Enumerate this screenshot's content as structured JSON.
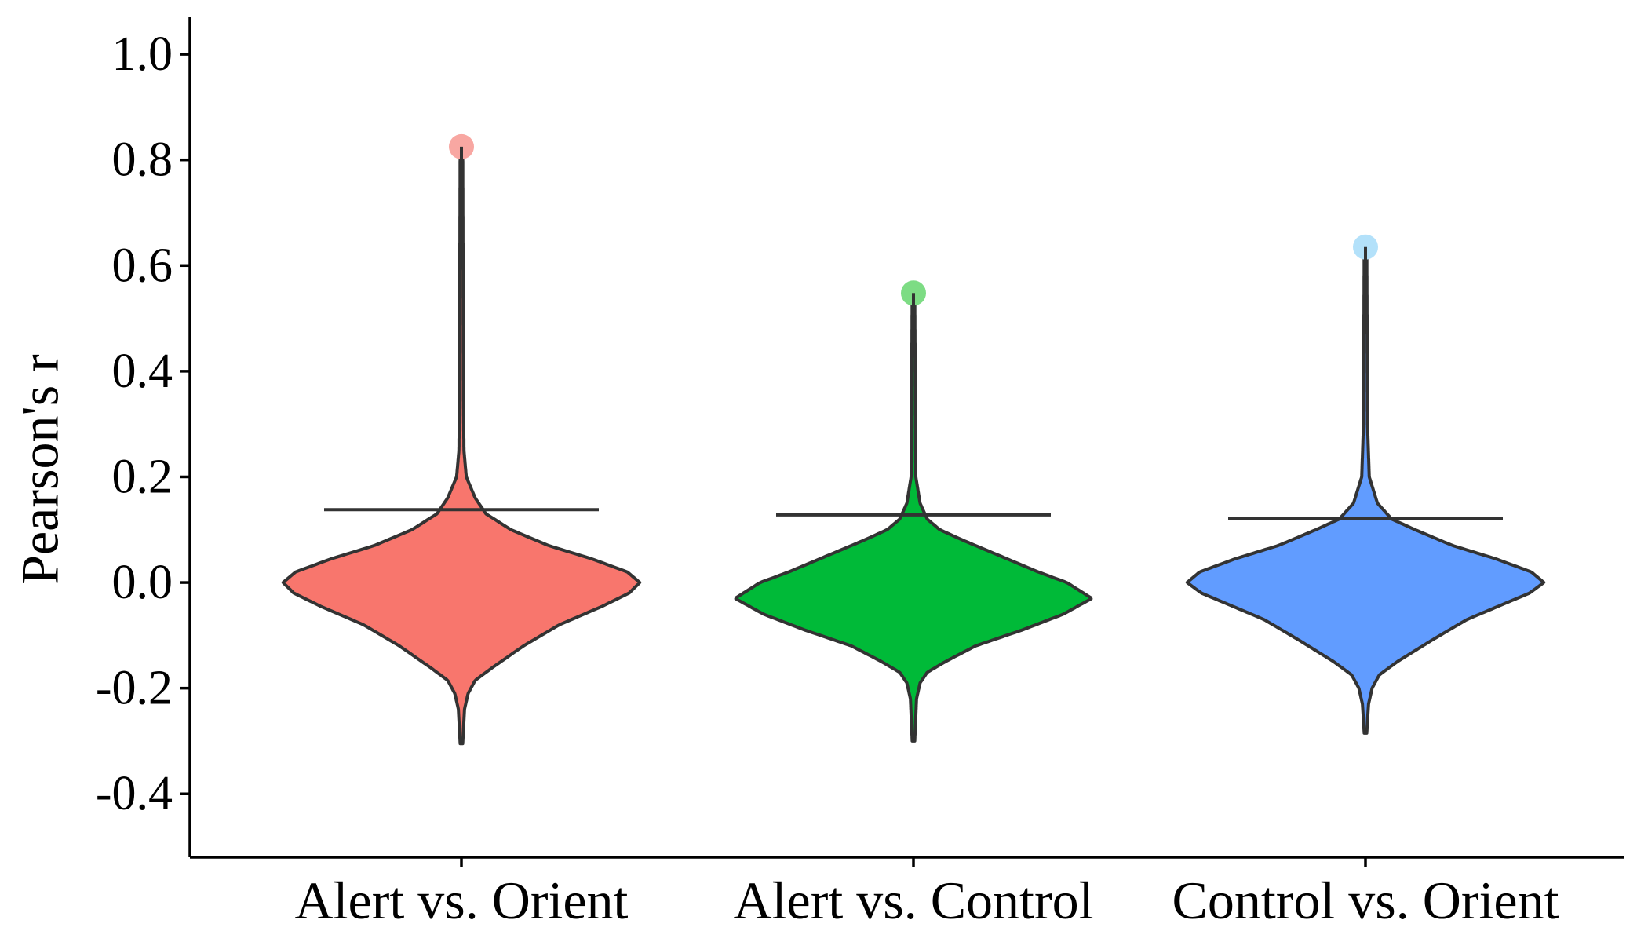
{
  "chart_data": {
    "type": "violin",
    "ylabel": "Pearson's r",
    "xlabel": "",
    "ylim": [
      -0.52,
      1.07
    ],
    "yticks": [
      1.0,
      0.8,
      0.6,
      0.4,
      0.2,
      0.0,
      -0.2,
      -0.4
    ],
    "ytick_labels": [
      "1.0",
      "0.8",
      "0.6",
      "0.4",
      "0.2",
      "0.0",
      "-0.2",
      "-0.4"
    ],
    "grid": false,
    "legend": "none",
    "categories": [
      "Alert vs. Orient",
      "Alert vs. Control",
      "Control vs. Orient"
    ],
    "series": [
      {
        "category": "Alert vs. Orient",
        "color": "#F8766D",
        "outlier_color": "#F8A7A2",
        "min": -0.305,
        "max": 0.825,
        "mode": 0.0,
        "reference_line": 0.138,
        "max_point": 0.825,
        "density_profile": [
          [
            -0.305,
            0.0
          ],
          [
            -0.24,
            0.01
          ],
          [
            -0.21,
            0.03
          ],
          [
            -0.185,
            0.07
          ],
          [
            -0.16,
            0.17
          ],
          [
            -0.12,
            0.34
          ],
          [
            -0.08,
            0.54
          ],
          [
            -0.045,
            0.78
          ],
          [
            -0.02,
            0.93
          ],
          [
            0.0,
            0.99
          ],
          [
            0.02,
            0.92
          ],
          [
            0.045,
            0.72
          ],
          [
            0.07,
            0.48
          ],
          [
            0.1,
            0.27
          ],
          [
            0.13,
            0.13
          ],
          [
            0.16,
            0.07
          ],
          [
            0.2,
            0.02
          ],
          [
            0.25,
            0.007
          ],
          [
            0.35,
            0.004
          ],
          [
            0.825,
            0.0
          ]
        ]
      },
      {
        "category": "Alert vs. Control",
        "color": "#00BA38",
        "outlier_color": "#7DDC84",
        "min": -0.3,
        "max": 0.548,
        "mode": -0.03,
        "reference_line": 0.128,
        "max_point": 0.548,
        "density_profile": [
          [
            -0.3,
            0.0
          ],
          [
            -0.22,
            0.01
          ],
          [
            -0.19,
            0.03
          ],
          [
            -0.17,
            0.07
          ],
          [
            -0.15,
            0.17
          ],
          [
            -0.12,
            0.34
          ],
          [
            -0.09,
            0.6
          ],
          [
            -0.06,
            0.83
          ],
          [
            -0.03,
            0.99
          ],
          [
            0.0,
            0.85
          ],
          [
            0.02,
            0.69
          ],
          [
            0.05,
            0.48
          ],
          [
            0.08,
            0.27
          ],
          [
            0.1,
            0.14
          ],
          [
            0.12,
            0.07
          ],
          [
            0.15,
            0.03
          ],
          [
            0.2,
            0.006
          ],
          [
            0.3,
            0.004
          ],
          [
            0.548,
            0.0
          ]
        ]
      },
      {
        "category": "Control vs. Orient",
        "color": "#619CFF",
        "outlier_color": "#B3E1FA",
        "min": -0.285,
        "max": 0.635,
        "mode": 0.0,
        "reference_line": 0.122,
        "max_point": 0.635,
        "density_profile": [
          [
            -0.285,
            0.0
          ],
          [
            -0.23,
            0.01
          ],
          [
            -0.2,
            0.03
          ],
          [
            -0.175,
            0.07
          ],
          [
            -0.15,
            0.17
          ],
          [
            -0.11,
            0.36
          ],
          [
            -0.07,
            0.56
          ],
          [
            -0.04,
            0.77
          ],
          [
            -0.02,
            0.91
          ],
          [
            0.0,
            0.99
          ],
          [
            0.02,
            0.92
          ],
          [
            0.045,
            0.72
          ],
          [
            0.07,
            0.48
          ],
          [
            0.1,
            0.27
          ],
          [
            0.12,
            0.14
          ],
          [
            0.15,
            0.06
          ],
          [
            0.2,
            0.014
          ],
          [
            0.3,
            0.004
          ],
          [
            0.635,
            0.0
          ]
        ]
      }
    ]
  }
}
